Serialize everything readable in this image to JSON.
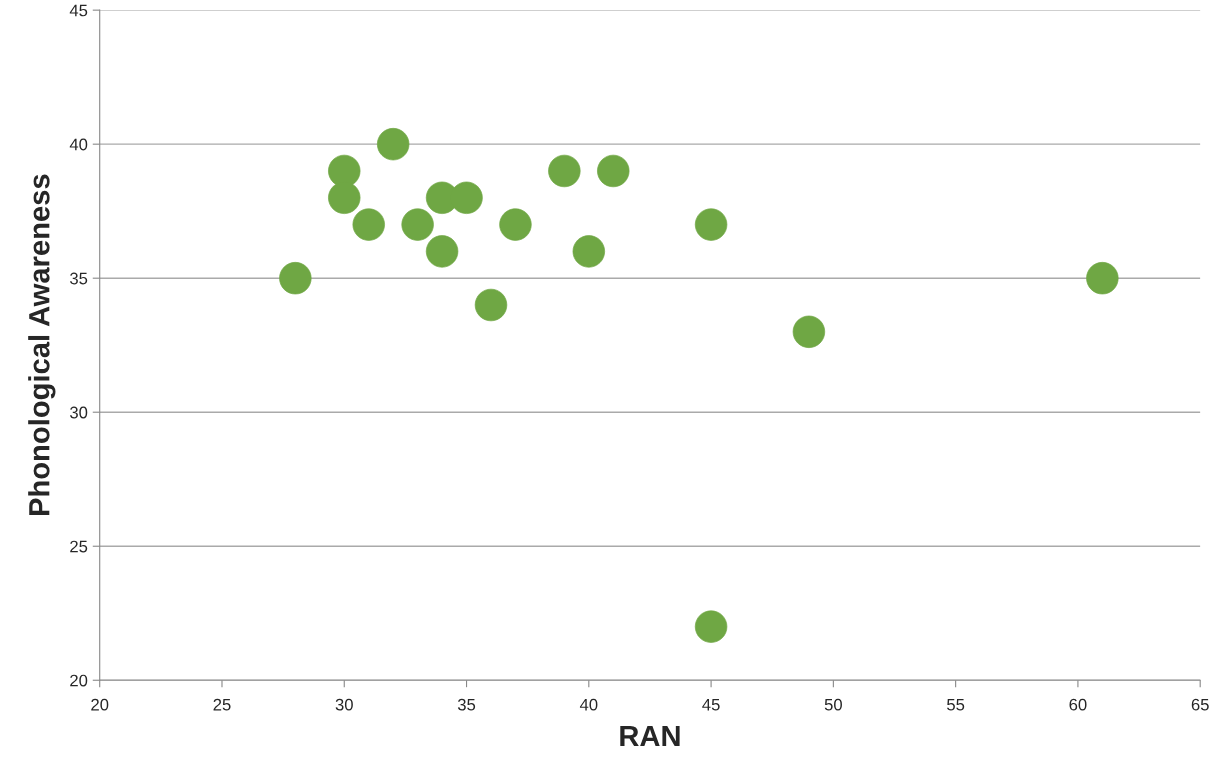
{
  "chart_data": {
    "type": "scatter",
    "xlabel": "RAN",
    "ylabel": "Phonological Awareness",
    "x": [
      28,
      30,
      30,
      31,
      32,
      33,
      34,
      34,
      35,
      36,
      37,
      39,
      40,
      41,
      45,
      45,
      49,
      61
    ],
    "series": [
      {
        "color": "#6fa744",
        "values": [
          35,
          39,
          38,
          37,
          40,
          37,
          38,
          36,
          38,
          34,
          37,
          39,
          36,
          39,
          37,
          22,
          33,
          35
        ]
      }
    ],
    "xlim": [
      20,
      65
    ],
    "xticks": [
      20,
      25,
      30,
      35,
      40,
      45,
      50,
      55,
      60,
      65
    ],
    "ylim": [
      20,
      45
    ],
    "yticks": [
      20,
      25,
      30,
      35,
      40,
      45
    ],
    "grid": "y",
    "marker": "circle",
    "legend": false
  }
}
